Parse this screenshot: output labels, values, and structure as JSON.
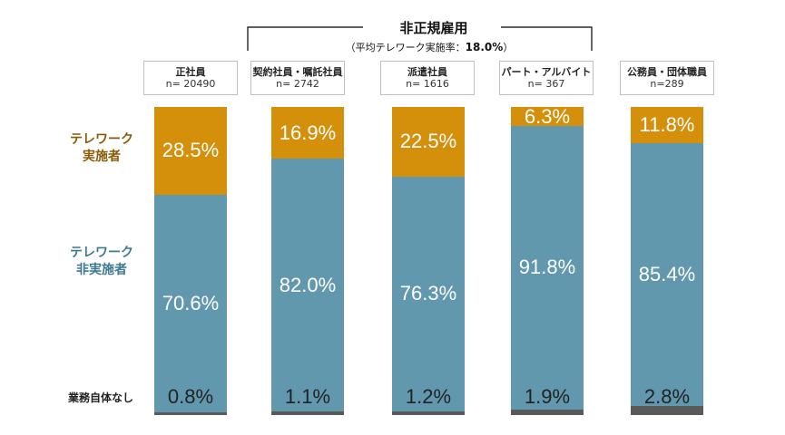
{
  "chart_data": {
    "type": "bar",
    "stacked": true,
    "normalized_to": 100,
    "group_label": {
      "title": "非正規雇用",
      "subtitle_prefix": "（平均テレワーク実施率：",
      "subtitle_value": "18.0%",
      "subtitle_suffix": "）"
    },
    "categories": [
      {
        "name": "正社員",
        "n": "n= 20490"
      },
      {
        "name": "契約社員・嘱託社員",
        "n": "n= 2742"
      },
      {
        "name": "派遣社員",
        "n": "n= 1616"
      },
      {
        "name": "パート・アルバイト",
        "n": "n= 367"
      },
      {
        "name": "公務員・団体職員",
        "n": "n=289"
      }
    ],
    "series": [
      {
        "key": "remote",
        "name": "テレワーク\n実施者",
        "color": "#d4900a",
        "values": [
          28.5,
          16.9,
          22.5,
          6.3,
          11.8
        ],
        "labels": [
          "28.5%",
          "16.9%",
          "22.5%",
          "6.3%",
          "11.8%"
        ]
      },
      {
        "key": "nonremote",
        "name": "テレワーク\n非実施者",
        "color": "#6298ae",
        "values": [
          70.6,
          82.0,
          76.3,
          91.8,
          85.4
        ],
        "labels": [
          "70.6%",
          "82.0%",
          "76.3%",
          "91.8%",
          "85.4%"
        ]
      },
      {
        "key": "none",
        "name": "業務自体なし",
        "color": "#595959",
        "values": [
          0.8,
          1.1,
          1.2,
          1.9,
          2.8
        ],
        "labels": [
          "0.8%",
          "1.1%",
          "1.2%",
          "1.9%",
          "2.8%"
        ]
      }
    ]
  }
}
